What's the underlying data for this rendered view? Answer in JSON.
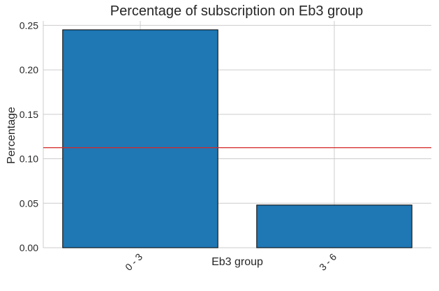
{
  "chart_data": {
    "type": "bar",
    "title": "Percentage of subscription on Eb3 group",
    "xlabel": "Eb3 group",
    "ylabel": "Percentage",
    "categories": [
      "0 - 3",
      "3 - 6"
    ],
    "values": [
      0.245,
      0.048
    ],
    "ylim": [
      0,
      0.255
    ],
    "yticks": [
      "0.00",
      "0.05",
      "0.10",
      "0.15",
      "0.20",
      "0.25"
    ],
    "reference_line": {
      "value": 0.1125,
      "color": "#d62728"
    },
    "bar_color": "#1f77b4",
    "grid": true
  }
}
